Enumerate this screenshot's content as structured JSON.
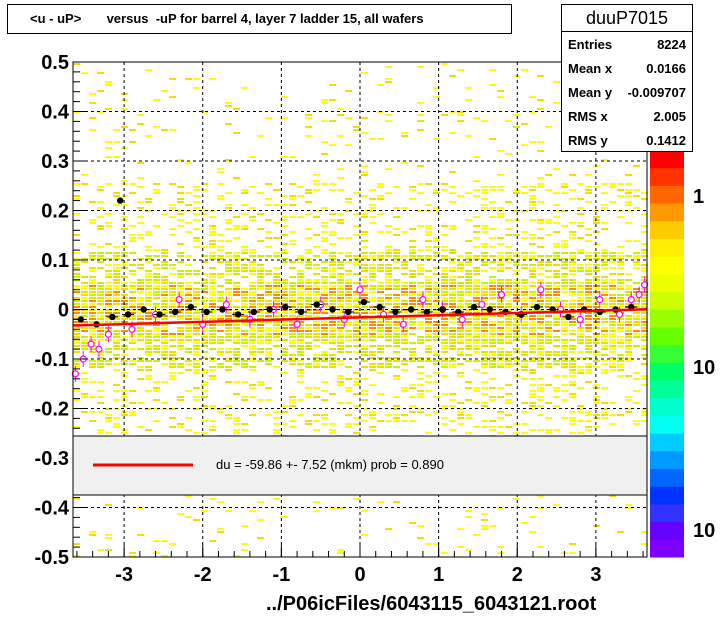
{
  "title": "<u - uP>       versus  -uP for barrel 4, layer 7 ladder 15, all wafers",
  "stats": {
    "name": "duuP7015",
    "rows": [
      {
        "label": "Entries",
        "value": "8224"
      },
      {
        "label": "Mean x",
        "value": "0.0166"
      },
      {
        "label": "Mean y",
        "value": "-0.009707"
      },
      {
        "label": "RMS x",
        "value": "2.005"
      },
      {
        "label": "RMS y",
        "value": "0.1412"
      }
    ]
  },
  "fit_legend": {
    "text": "du =  -59.86 +-  7.52 (mkm) prob = 0.890",
    "line_color": "#ff0000"
  },
  "xaxis_title": "../P06icFiles/6043115_6043121.root",
  "colors": {
    "fit_line": "#ff0000",
    "points": "#000000",
    "open_points": "#ff00ff",
    "grid": "#000000"
  },
  "chart_data": {
    "type": "heatmap",
    "xlim": [
      -3.65,
      3.65
    ],
    "ylim": [
      -0.5,
      0.5
    ],
    "xticks": [
      -3,
      -2,
      -1,
      0,
      1,
      2,
      3
    ],
    "yticks": [
      -0.5,
      -0.4,
      -0.3,
      -0.2,
      -0.1,
      0,
      0.1,
      0.2,
      0.3,
      0.4,
      0.5
    ],
    "ytick_labels": [
      "-0.5",
      "-0.4",
      "-0.3",
      "-0.2",
      "-0.1",
      "0",
      "0.1",
      "0.2",
      "0.3",
      "0.4",
      "0.5"
    ],
    "grid": true,
    "z_scale": "log",
    "palette_labels": [
      "1",
      "10",
      "10"
    ],
    "fit": {
      "intercept": -0.016,
      "slope": 0.0045
    },
    "profile_closed": {
      "x": [
        -3.55,
        -3.35,
        -3.15,
        -2.95,
        -2.75,
        -2.55,
        -2.35,
        -2.15,
        -1.95,
        -1.75,
        -1.55,
        -1.35,
        -1.15,
        -0.95,
        -0.75,
        -0.55,
        -0.35,
        -0.15,
        0.05,
        0.25,
        0.45,
        0.65,
        0.85,
        1.05,
        1.25,
        1.45,
        1.65,
        1.85,
        2.05,
        2.25,
        2.45,
        2.65,
        2.85,
        3.05,
        3.25,
        3.45
      ],
      "y": [
        -0.02,
        -0.03,
        -0.015,
        -0.01,
        0.0,
        -0.01,
        -0.005,
        0.005,
        -0.005,
        0.0,
        -0.01,
        -0.005,
        0.0,
        0.005,
        -0.005,
        0.01,
        0.0,
        -0.005,
        0.015,
        0.005,
        -0.005,
        0.0,
        -0.005,
        0.0,
        -0.005,
        0.005,
        0.0,
        -0.005,
        -0.01,
        0.005,
        0.0,
        -0.015,
        0.0,
        -0.005,
        0.0,
        0.005
      ]
    },
    "outlier_point": {
      "x": -3.05,
      "y": 0.22
    },
    "profile_open": {
      "x": [
        -3.62,
        -3.52,
        -3.42,
        -3.32,
        -3.2,
        -2.9,
        -2.6,
        -2.3,
        -2.0,
        -1.7,
        -1.4,
        -1.1,
        -0.8,
        -0.5,
        -0.2,
        0.0,
        0.3,
        0.55,
        0.8,
        1.05,
        1.3,
        1.55,
        1.8,
        2.05,
        2.3,
        2.55,
        2.8,
        3.05,
        3.3,
        3.45,
        3.55,
        3.62
      ],
      "y": [
        -0.13,
        -0.1,
        -0.07,
        -0.08,
        -0.05,
        -0.04,
        -0.01,
        0.02,
        -0.03,
        0.01,
        -0.02,
        0.0,
        -0.03,
        0.01,
        -0.02,
        0.04,
        -0.01,
        -0.03,
        0.02,
        0.0,
        -0.02,
        0.01,
        0.03,
        -0.01,
        0.04,
        0.0,
        -0.02,
        0.02,
        -0.01,
        0.02,
        0.03,
        0.05
      ]
    }
  }
}
